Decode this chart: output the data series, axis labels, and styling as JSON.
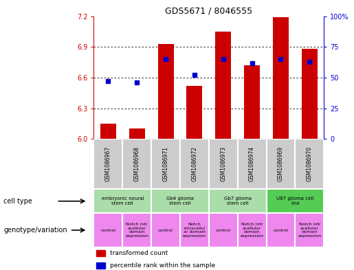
{
  "title": "GDS5671 / 8046555",
  "samples": [
    "GSM1086967",
    "GSM1086968",
    "GSM1086971",
    "GSM1086972",
    "GSM1086973",
    "GSM1086974",
    "GSM1086969",
    "GSM1086970"
  ],
  "transformed_count": [
    6.15,
    6.1,
    6.93,
    6.52,
    7.05,
    6.72,
    7.19,
    6.88
  ],
  "percentile_rank": [
    47,
    46,
    65,
    52,
    65,
    62,
    65,
    63
  ],
  "ylim_left": [
    6.0,
    7.2
  ],
  "ylim_right": [
    0,
    100
  ],
  "yticks_left": [
    6.0,
    6.3,
    6.6,
    6.9,
    7.2
  ],
  "yticks_right": [
    0,
    25,
    50,
    75,
    100
  ],
  "ytick_right_labels": [
    "0",
    "25",
    "50",
    "75",
    "100%"
  ],
  "cell_types": [
    {
      "label": "embryonic neural\nstem cell",
      "start": 0,
      "end": 2,
      "color": "#aaddaa"
    },
    {
      "label": "Gb4 glioma\nstem cell",
      "start": 2,
      "end": 4,
      "color": "#aaddaa"
    },
    {
      "label": "Gb7 glioma\nstem cell",
      "start": 4,
      "end": 6,
      "color": "#aaddaa"
    },
    {
      "label": "U87 glioma cell\nline",
      "start": 6,
      "end": 8,
      "color": "#55cc55"
    }
  ],
  "genotype_variation": [
    {
      "label": "control",
      "start": 0,
      "end": 1,
      "color": "#ee88ee"
    },
    {
      "label": "Notch intr\nacellular\ndomain\nexpression",
      "start": 1,
      "end": 2,
      "color": "#ee88ee"
    },
    {
      "label": "control",
      "start": 2,
      "end": 3,
      "color": "#ee88ee"
    },
    {
      "label": "Notch\nintracellul\nar domain\nexpression",
      "start": 3,
      "end": 4,
      "color": "#ee88ee"
    },
    {
      "label": "control",
      "start": 4,
      "end": 5,
      "color": "#ee88ee"
    },
    {
      "label": "Notch intr\nacellular\ndomain\nexpression",
      "start": 5,
      "end": 6,
      "color": "#ee88ee"
    },
    {
      "label": "control",
      "start": 6,
      "end": 7,
      "color": "#ee88ee"
    },
    {
      "label": "Notch intr\nacellular\ndomain\nexpression",
      "start": 7,
      "end": 8,
      "color": "#ee88ee"
    }
  ],
  "bar_color": "#cc0000",
  "dot_color": "#0000cc",
  "grid_color": "#000000",
  "bg_color": "#ffffff",
  "left_axis_color": "#cc0000",
  "right_axis_color": "#0000cc",
  "sample_bg_color": "#cccccc"
}
